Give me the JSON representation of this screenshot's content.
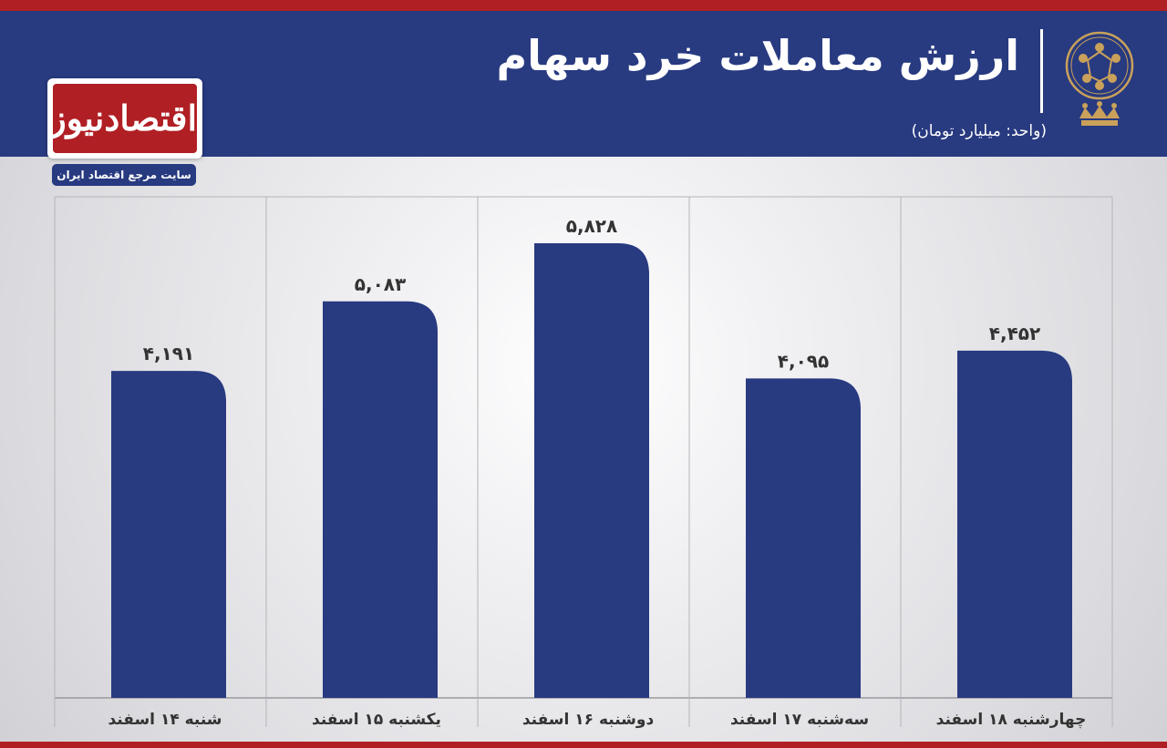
{
  "header": {
    "title": "ارزش معاملات خرد سهام",
    "unit_note": "(واحد: میلیارد تومان)"
  },
  "brand": {
    "logo_text": "اقتصادنیوز",
    "tagline": "سایت مرجع اقتصاد ایران",
    "emblem": "stock-exchange-emblem-icon"
  },
  "colors": {
    "bar": "#283a80",
    "header": "#283a80",
    "accent": "#b01f24",
    "emblem": "#c9a15a"
  },
  "chart_data": {
    "type": "bar",
    "categories": [
      "شنبه ۱۴ اسفند",
      "یکشنبه ۱۵ اسفند",
      "دوشنبه ۱۶ اسفند",
      "سه‌شنبه ۱۷ اسفند",
      "چهارشنبه ۱۸ اسفند"
    ],
    "values": [
      4191,
      5083,
      5828,
      4095,
      4452
    ],
    "value_labels": [
      "۴,۱۹۱",
      "۵,۰۸۳",
      "۵,۸۲۸",
      "۴,۰۹۵",
      "۴,۴۵۲"
    ],
    "grid": "vertical separators",
    "legend": "none"
  }
}
